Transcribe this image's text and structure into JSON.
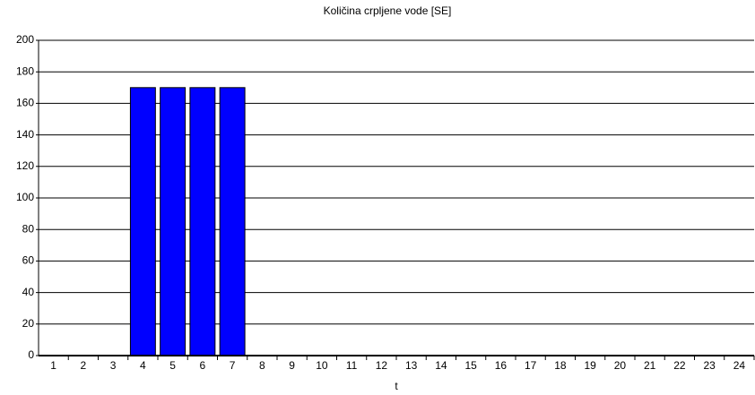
{
  "chart_data": {
    "type": "bar",
    "title": "Količina crpljene vode [SE]",
    "x_label": "t",
    "categories": [
      "1",
      "2",
      "3",
      "4",
      "5",
      "6",
      "7",
      "8",
      "9",
      "10",
      "11",
      "12",
      "13",
      "14",
      "15",
      "16",
      "17",
      "18",
      "19",
      "20",
      "21",
      "22",
      "23",
      "24"
    ],
    "values": [
      0,
      0,
      0,
      170,
      170,
      170,
      170,
      0,
      0,
      0,
      0,
      0,
      0,
      0,
      0,
      0,
      0,
      0,
      0,
      0,
      0,
      0,
      0,
      0
    ],
    "color": "#0000ff",
    "ylim": [
      0,
      200
    ],
    "yticks": [
      0,
      20,
      40,
      60,
      80,
      100,
      120,
      140,
      160,
      180,
      200
    ],
    "grid": true
  }
}
